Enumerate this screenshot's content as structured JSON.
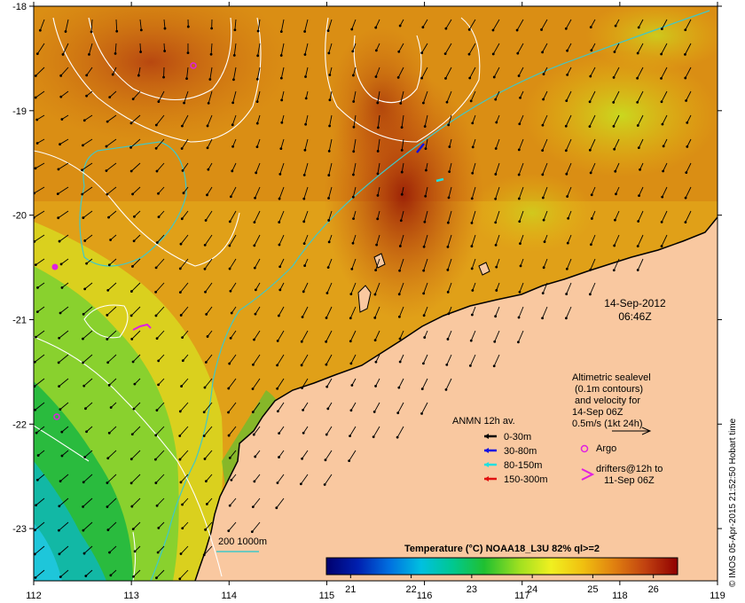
{
  "axes": {
    "lon": {
      "min": 112,
      "max": 119,
      "ticks": [
        "112",
        "113",
        "114",
        "115",
        "116",
        "117",
        "118",
        "119"
      ]
    },
    "lat": {
      "min": -23.5,
      "max": -18,
      "ticks": [
        "-18",
        "-19",
        "-20",
        "-21",
        "-22",
        "-23"
      ]
    }
  },
  "date_label": {
    "date": "14-Sep-2012",
    "time": "06:46Z"
  },
  "altimetry": {
    "lines": [
      "Altimetric sealevel",
      "(0.1m contours)",
      "and velocity for",
      "14-Sep 06Z",
      "0.5m/s (1kt 24h)"
    ]
  },
  "legend": {
    "title": "ANMN 12h av.",
    "items": [
      {
        "label": "0-30m",
        "color": "#000000"
      },
      {
        "label": "30-80m",
        "color": "#1010e0"
      },
      {
        "label": "80-150m",
        "color": "#20e0e0"
      },
      {
        "label": "150-300m",
        "color": "#e01010"
      }
    ],
    "argo": {
      "label": "Argo",
      "color": "#e020e0"
    },
    "drifters": {
      "lines": [
        "drifters@12h to",
        "11-Sep 06Z"
      ],
      "color": "#e020e0"
    }
  },
  "isobath_label": "200  1000m",
  "colorbar": {
    "title": "Temperature (°C) NOAA18_L3U 82% ql>=2",
    "ticks": [
      "21",
      "22",
      "23",
      "24",
      "25",
      "26"
    ],
    "range": [
      20.6,
      26.4
    ]
  },
  "credit": "© IMOS 05-Apr-2015 21:52:50 Hobart time",
  "colors": {
    "land": "#f9c8a0",
    "warm": "#b0320a",
    "isobath": "#40c8c8"
  }
}
